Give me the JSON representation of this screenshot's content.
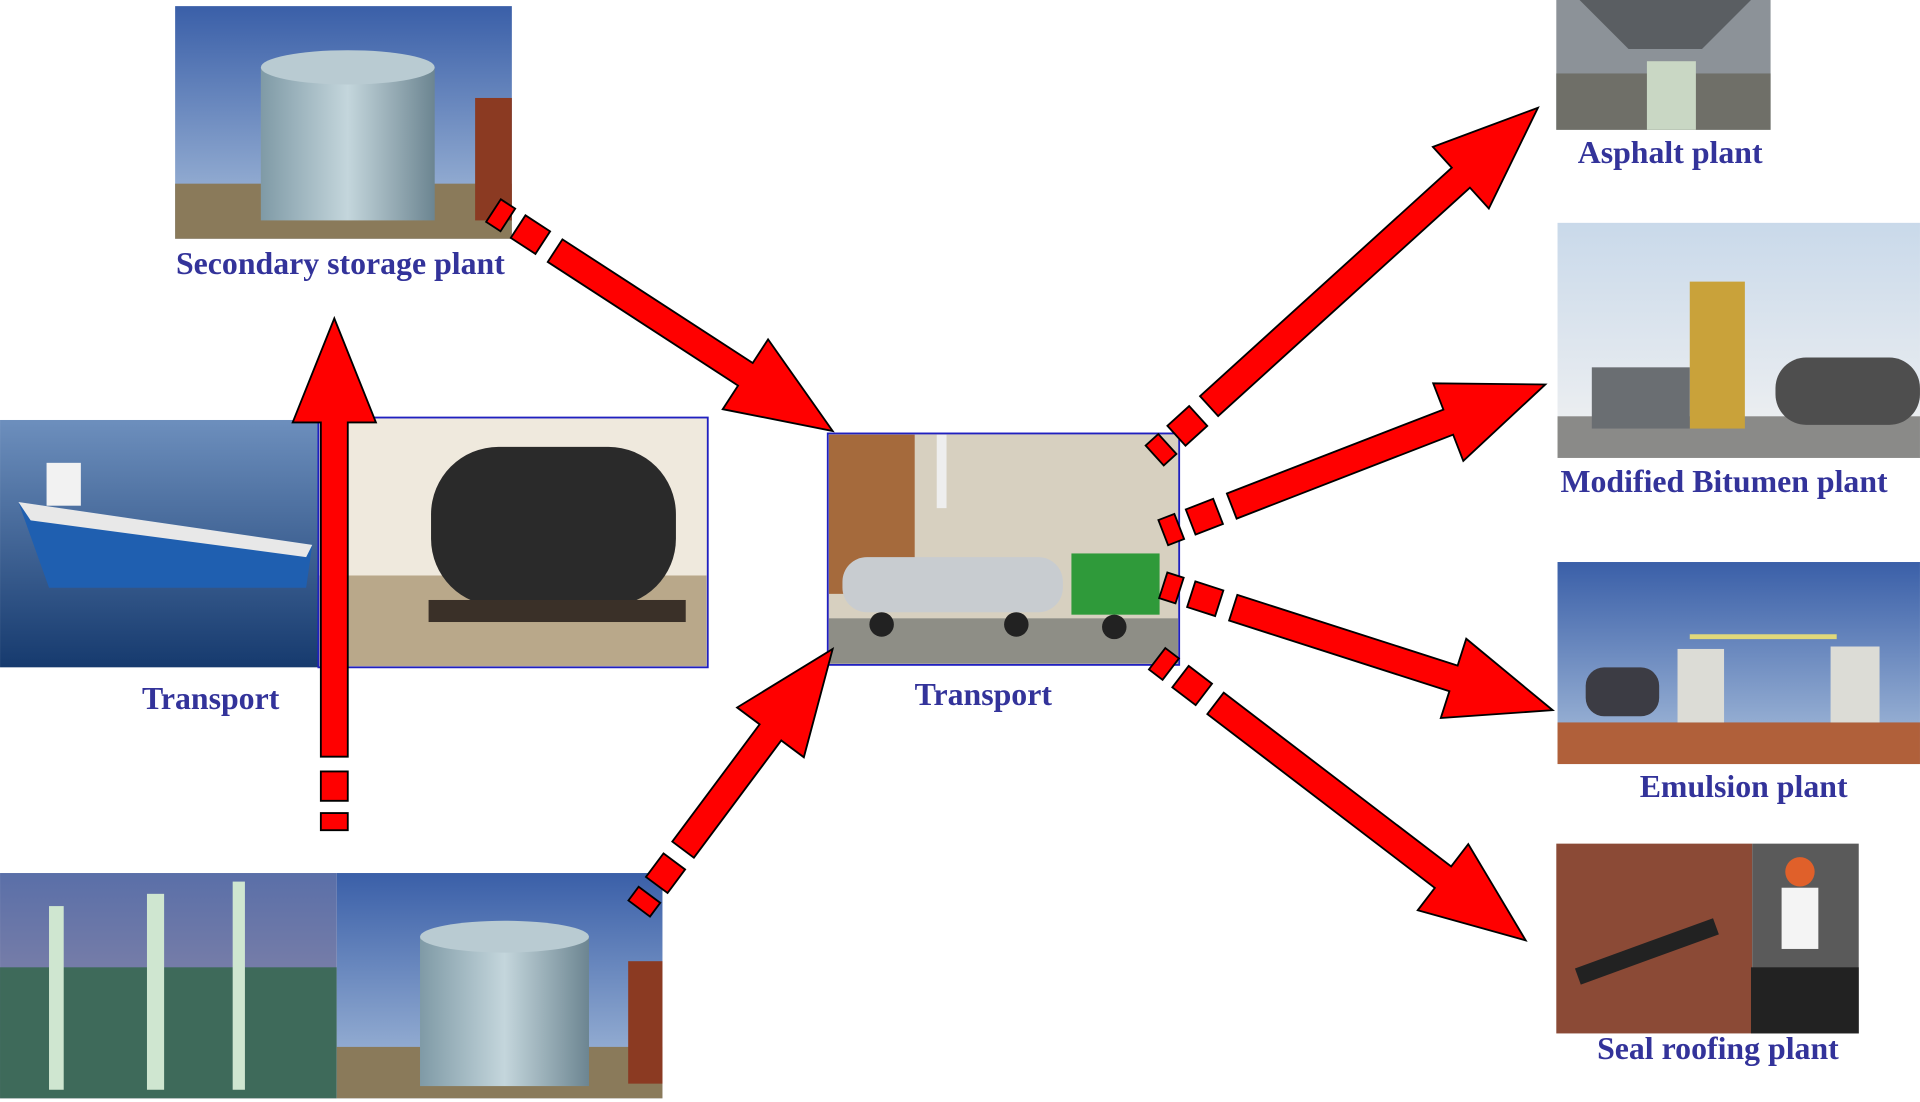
{
  "nodes": [
    {
      "label": "Secondary storage plant"
    },
    {
      "label": "Transport"
    },
    {
      "label": "Transport"
    },
    {
      "label": "Asphalt plant"
    },
    {
      "label": "Modified Bitumen plant"
    },
    {
      "label": "Emulsion plant"
    },
    {
      "label": "Seal roofing plant"
    }
  ]
}
